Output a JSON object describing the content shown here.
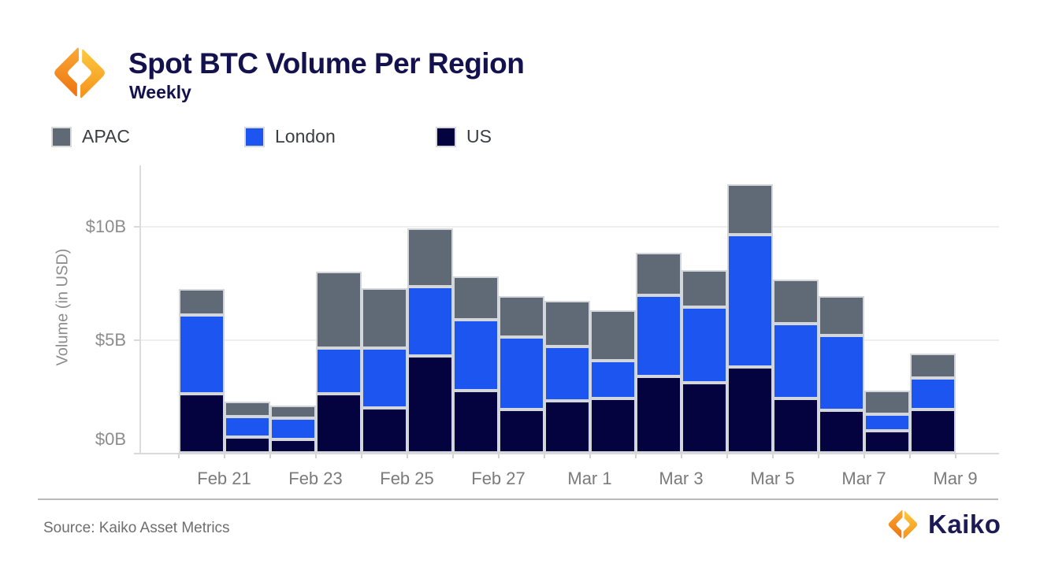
{
  "header": {
    "title": "Spot BTC Volume Per Region",
    "subtitle": "Weekly"
  },
  "legend": [
    {
      "label": "APAC",
      "color": "#5f6a76"
    },
    {
      "label": "London",
      "color": "#1c55f0"
    },
    {
      "label": "US",
      "color": "#040340"
    }
  ],
  "chart_data": {
    "type": "bar",
    "stacked": true,
    "title": "Spot BTC Volume Per Region",
    "subtitle": "Weekly",
    "xlabel": "",
    "ylabel": "Volume (in USD)",
    "ylim": [
      0,
      12.7
    ],
    "grid": "horizontal",
    "legend_position": "top",
    "x": [
      "Feb 21",
      "Feb 22",
      "Feb 23",
      "Feb 24",
      "Feb 25",
      "Feb 26",
      "Feb 27",
      "Feb 28",
      "Mar 1",
      "Mar 2",
      "Mar 3",
      "Mar 4",
      "Mar 5",
      "Mar 6",
      "Mar 7",
      "Mar 8",
      "Mar 9"
    ],
    "x_tick_labels": [
      "Feb 21",
      "Feb 23",
      "Feb 25",
      "Feb 27",
      "Mar 1",
      "Mar 3",
      "Mar 5",
      "Mar 7",
      "Mar 9"
    ],
    "y_ticks": [
      "$10B",
      "$5B",
      "$0B"
    ],
    "series": [
      {
        "name": "US",
        "color": "#040340",
        "values": [
          2.62,
          0.71,
          0.59,
          2.6,
          1.97,
          4.27,
          2.74,
          1.93,
          2.3,
          2.41,
          3.38,
          3.09,
          3.81,
          2.4,
          1.87,
          0.96,
          1.93
        ]
      },
      {
        "name": "London",
        "color": "#1c55f0",
        "values": [
          3.49,
          0.88,
          0.95,
          2.05,
          2.66,
          3.09,
          3.14,
          3.18,
          2.39,
          1.67,
          3.58,
          3.34,
          5.83,
          3.3,
          3.31,
          0.76,
          1.39
        ]
      },
      {
        "name": "APAC",
        "color": "#5f6a76",
        "values": [
          1.13,
          0.67,
          0.55,
          3.36,
          2.64,
          2.56,
          1.92,
          1.84,
          2.05,
          2.23,
          1.89,
          1.66,
          2.23,
          1.95,
          1.77,
          1.02,
          1.07
        ]
      }
    ],
    "totals": [
      7.24,
      2.26,
      2.09,
      8.01,
      7.27,
      9.92,
      7.8,
      6.95,
      6.74,
      6.31,
      8.85,
      8.09,
      11.87,
      7.65,
      6.95,
      2.74,
      4.39
    ]
  },
  "footer": {
    "source": "Source: Kaiko Asset Metrics",
    "brand": "Kaiko"
  }
}
